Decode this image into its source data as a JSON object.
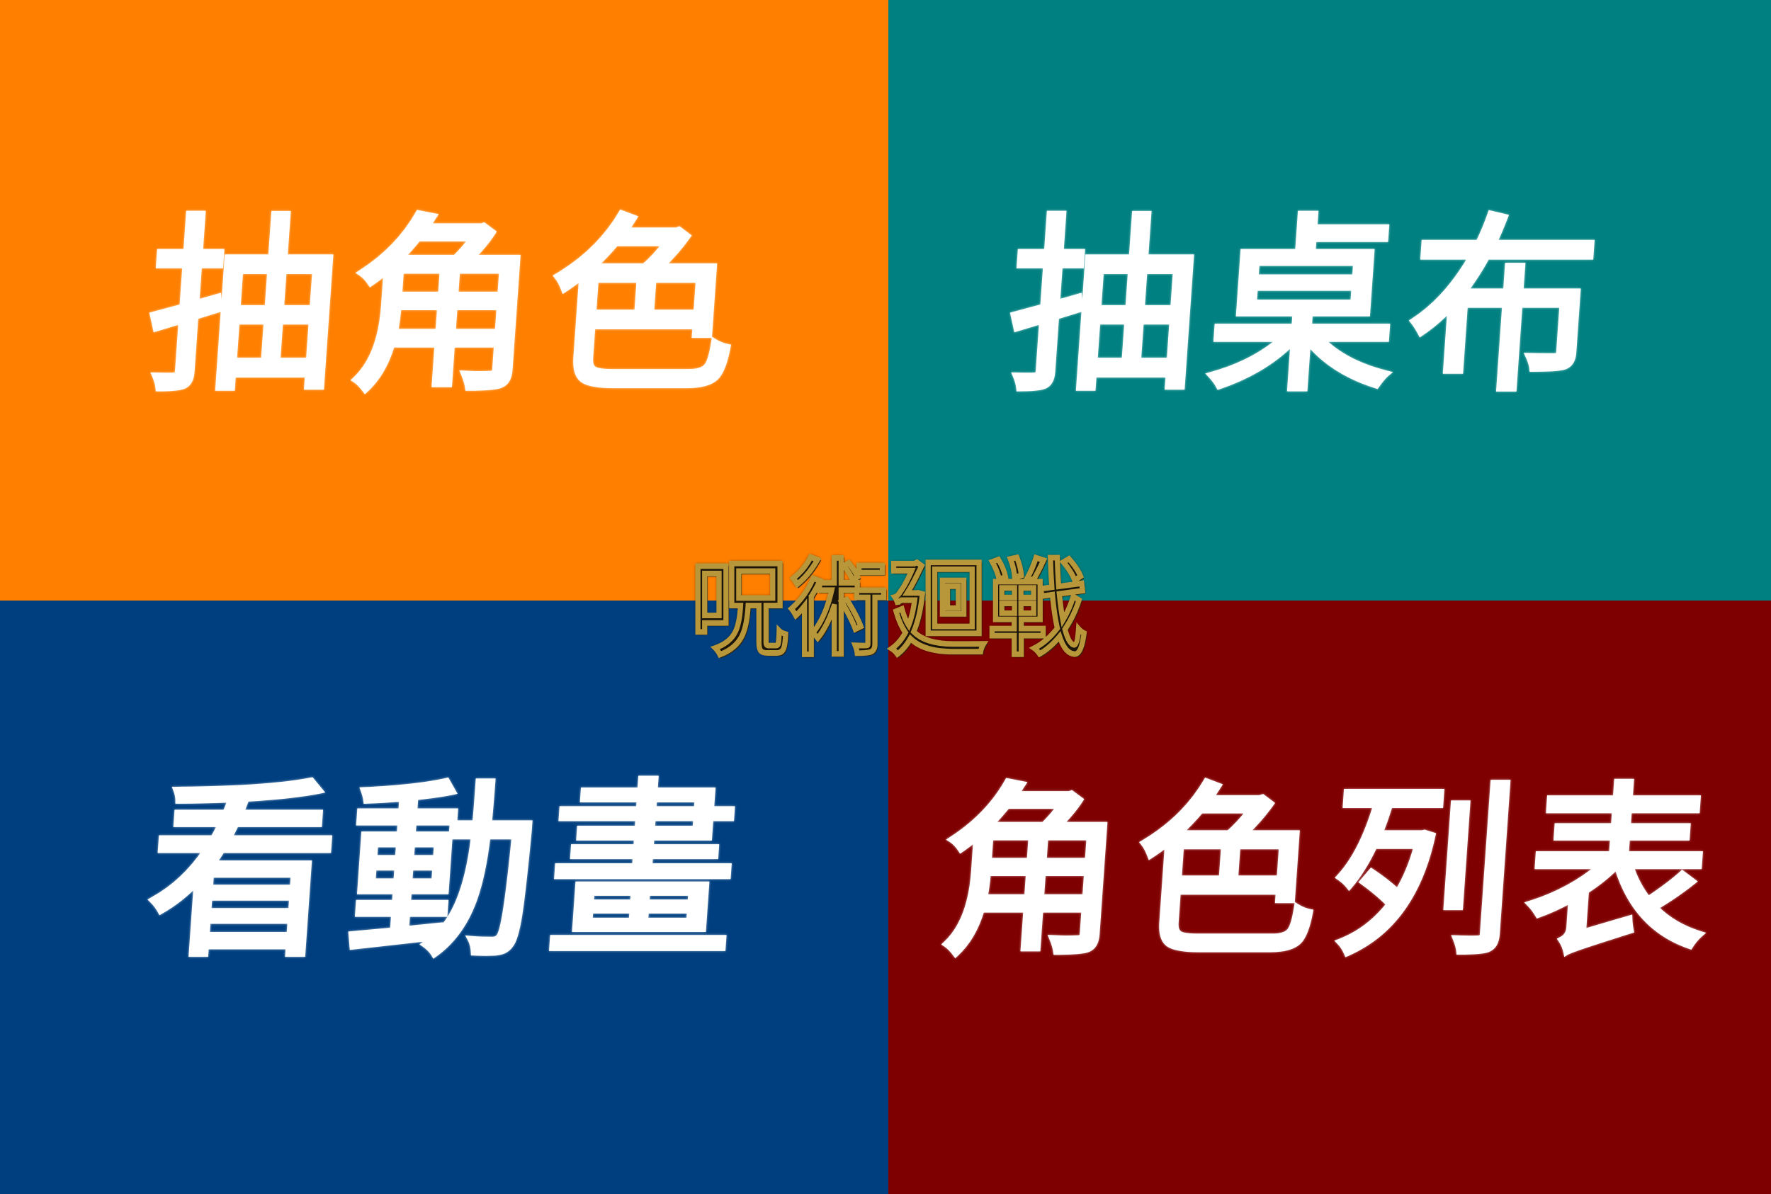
{
  "menu": {
    "tiles": [
      {
        "label": "抽角色",
        "color": "#FF7F00"
      },
      {
        "label": "抽桌布",
        "color": "#008080"
      },
      {
        "label": "看動畫",
        "color": "#003F7F"
      },
      {
        "label": "角色列表",
        "color": "#7F0000"
      }
    ]
  },
  "logo": {
    "text": "呪術廻戦",
    "fill": "#1A140A",
    "outline": "#B8973A"
  }
}
